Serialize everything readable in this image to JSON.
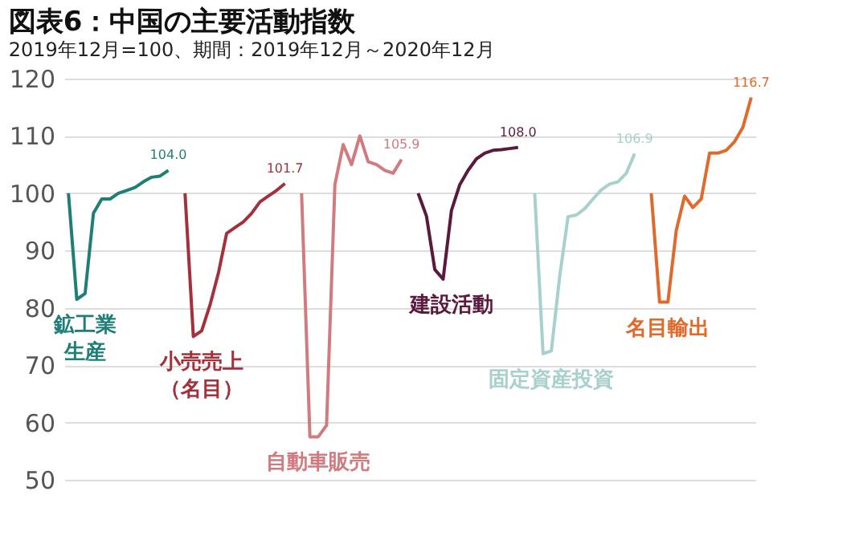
{
  "chart_data": {
    "type": "line",
    "title": "図表6：中国の主要活動指数",
    "subtitle": "2019年12月=100、期間：2019年12月～2020年12月",
    "categories": [
      null,
      null,
      null,
      null,
      null,
      null,
      null,
      null,
      null,
      null,
      null,
      null,
      null,
      null,
      null,
      null,
      null,
      null,
      null,
      null,
      null,
      null,
      null,
      null,
      null,
      null,
      null,
      null,
      null,
      null,
      null,
      null,
      null,
      null,
      null,
      null,
      null,
      null,
      null,
      null,
      null,
      null,
      null,
      null,
      null,
      null,
      null,
      null,
      null,
      null,
      null,
      null,
      null,
      null,
      null,
      null,
      null,
      null,
      null,
      null,
      null,
      null,
      null,
      null,
      null,
      null,
      null,
      null,
      null,
      null,
      null,
      null,
      null,
      null,
      null,
      null,
      null,
      null,
      null,
      null,
      null,
      null,
      null
    ],
    "ylim": [
      50,
      120
    ],
    "yticks": [
      50,
      60,
      70,
      80,
      90,
      100,
      110,
      120
    ],
    "grid": "y",
    "legend": false,
    "tick_labels": "y",
    "series": [
      {
        "name": "鉱工業生産",
        "color": "#1f7f78",
        "values": [
          100,
          81.5,
          82.5,
          96.5,
          99,
          99,
          100,
          100.5,
          101,
          102,
          102.8,
          103,
          104.0,
          null,
          null,
          null,
          null,
          null,
          null,
          null,
          null,
          null,
          null,
          null,
          null,
          null,
          null,
          null,
          null,
          null,
          null,
          null,
          null,
          null,
          null,
          null,
          null,
          null,
          null,
          null,
          null,
          null,
          null,
          null,
          null,
          null,
          null,
          null,
          null,
          null,
          null,
          null,
          null,
          null,
          null,
          null,
          null,
          null,
          null,
          null,
          null,
          null,
          null,
          null,
          null,
          null,
          null,
          null,
          null,
          null,
          null,
          null,
          null,
          null,
          null,
          null,
          null,
          null,
          null,
          null,
          null,
          null,
          null
        ],
        "value_labels": [
          null,
          null,
          null,
          null,
          null,
          null,
          null,
          null,
          null,
          null,
          null,
          null,
          "104.0",
          null,
          null,
          null,
          null,
          null,
          null,
          null,
          null,
          null,
          null,
          null,
          null,
          null,
          null,
          null,
          null,
          null,
          null,
          null,
          null,
          null,
          null,
          null,
          null,
          null,
          null,
          null,
          null,
          null,
          null,
          null,
          null,
          null,
          null,
          null,
          null,
          null,
          null,
          null,
          null,
          null,
          null,
          null,
          null,
          null,
          null,
          null,
          null,
          null,
          null,
          null,
          null,
          null,
          null,
          null,
          null,
          null,
          null,
          null,
          null,
          null,
          null,
          null,
          null,
          null,
          null,
          null,
          null,
          null,
          null
        ]
      },
      {
        "name": "小売売上（名目）",
        "color": "#a3303a",
        "values": [
          null,
          null,
          null,
          null,
          null,
          null,
          null,
          null,
          null,
          null,
          null,
          null,
          null,
          null,
          100,
          75,
          76,
          80.5,
          86,
          93,
          94,
          95,
          96.5,
          98.5,
          99.5,
          100.5,
          101.7,
          null,
          null,
          null,
          null,
          null,
          null,
          null,
          null,
          null,
          null,
          null,
          null,
          null,
          null,
          null,
          null,
          null,
          null,
          null,
          null,
          null,
          null,
          null,
          null,
          null,
          null,
          null,
          null,
          null,
          null,
          null,
          null,
          null,
          null,
          null,
          null,
          null,
          null,
          null,
          null,
          null,
          null,
          null,
          null,
          null,
          null,
          null,
          null,
          null,
          null,
          null,
          null,
          null,
          null,
          null,
          null
        ],
        "value_labels": [
          null,
          null,
          null,
          null,
          null,
          null,
          null,
          null,
          null,
          null,
          null,
          null,
          null,
          null,
          null,
          null,
          null,
          null,
          null,
          null,
          null,
          null,
          null,
          null,
          null,
          null,
          "101.7",
          null,
          null,
          null,
          null,
          null,
          null,
          null,
          null,
          null,
          null,
          null,
          null,
          null,
          null,
          null,
          null,
          null,
          null,
          null,
          null,
          null,
          null,
          null,
          null,
          null,
          null,
          null,
          null,
          null,
          null,
          null,
          null,
          null,
          null,
          null,
          null,
          null,
          null,
          null,
          null,
          null,
          null,
          null,
          null,
          null,
          null,
          null,
          null,
          null,
          null,
          null,
          null,
          null,
          null,
          null,
          null
        ]
      },
      {
        "name": "自動車販売",
        "color": "#d07b80",
        "values": [
          null,
          null,
          null,
          null,
          null,
          null,
          null,
          null,
          null,
          null,
          null,
          null,
          null,
          null,
          null,
          null,
          null,
          null,
          null,
          null,
          null,
          null,
          null,
          null,
          null,
          null,
          null,
          null,
          100,
          57.5,
          57.5,
          59.5,
          101.5,
          108.5,
          105,
          110,
          105.5,
          105,
          104,
          103.5,
          105.9,
          null,
          null,
          null,
          null,
          null,
          null,
          null,
          null,
          null,
          null,
          null,
          null,
          null,
          null,
          null,
          null,
          null,
          null,
          null,
          null,
          null,
          null,
          null,
          null,
          null,
          null,
          null,
          null,
          null,
          null,
          null,
          null,
          null,
          null,
          null,
          null,
          null,
          null,
          null,
          null,
          null,
          null
        ],
        "value_labels": [
          null,
          null,
          null,
          null,
          null,
          null,
          null,
          null,
          null,
          null,
          null,
          null,
          null,
          null,
          null,
          null,
          null,
          null,
          null,
          null,
          null,
          null,
          null,
          null,
          null,
          null,
          null,
          null,
          null,
          null,
          null,
          null,
          null,
          null,
          null,
          null,
          null,
          null,
          null,
          null,
          "105.9",
          null,
          null,
          null,
          null,
          null,
          null,
          null,
          null,
          null,
          null,
          null,
          null,
          null,
          null,
          null,
          null,
          null,
          null,
          null,
          null,
          null,
          null,
          null,
          null,
          null,
          null,
          null,
          null,
          null,
          null,
          null,
          null,
          null,
          null,
          null,
          null,
          null,
          null,
          null,
          null,
          null,
          null
        ]
      },
      {
        "name": "建設活動",
        "color": "#5a1a3e",
        "values": [
          null,
          null,
          null,
          null,
          null,
          null,
          null,
          null,
          null,
          null,
          null,
          null,
          null,
          null,
          null,
          null,
          null,
          null,
          null,
          null,
          null,
          null,
          null,
          null,
          null,
          null,
          null,
          null,
          null,
          null,
          null,
          null,
          null,
          null,
          null,
          null,
          null,
          null,
          null,
          null,
          null,
          null,
          100,
          96,
          86.7,
          85,
          97,
          101.5,
          104,
          106,
          107,
          107.5,
          107.6,
          107.8,
          108.0,
          null,
          null,
          null,
          null,
          null,
          null,
          null,
          null,
          null,
          null,
          null,
          null,
          null,
          null,
          null,
          null,
          null,
          null,
          null,
          null,
          null,
          null,
          null,
          null,
          null,
          null,
          null,
          null
        ],
        "value_labels": [
          null,
          null,
          null,
          null,
          null,
          null,
          null,
          null,
          null,
          null,
          null,
          null,
          null,
          null,
          null,
          null,
          null,
          null,
          null,
          null,
          null,
          null,
          null,
          null,
          null,
          null,
          null,
          null,
          null,
          null,
          null,
          null,
          null,
          null,
          null,
          null,
          null,
          null,
          null,
          null,
          null,
          null,
          null,
          null,
          null,
          null,
          null,
          null,
          null,
          null,
          null,
          null,
          null,
          null,
          "108.0",
          null,
          null,
          null,
          null,
          null,
          null,
          null,
          null,
          null,
          null,
          null,
          null,
          null,
          null,
          null,
          null,
          null,
          null,
          null,
          null,
          null,
          null,
          null,
          null,
          null,
          null,
          null,
          null
        ]
      },
      {
        "name": "固定資産投資",
        "color": "#a8d0cc",
        "values": [
          null,
          null,
          null,
          null,
          null,
          null,
          null,
          null,
          null,
          null,
          null,
          null,
          null,
          null,
          null,
          null,
          null,
          null,
          null,
          null,
          null,
          null,
          null,
          null,
          null,
          null,
          null,
          null,
          null,
          null,
          null,
          null,
          null,
          null,
          null,
          null,
          null,
          null,
          null,
          null,
          null,
          null,
          null,
          null,
          null,
          null,
          null,
          null,
          null,
          null,
          null,
          null,
          null,
          null,
          null,
          null,
          100,
          72,
          72.5,
          85.5,
          95.9,
          96.2,
          97.3,
          99,
          100.6,
          101.6,
          102,
          103.5,
          106.9,
          null,
          null,
          null,
          null,
          null,
          null,
          null,
          null,
          null,
          null,
          null,
          null,
          null,
          null
        ],
        "value_labels": [
          null,
          null,
          null,
          null,
          null,
          null,
          null,
          null,
          null,
          null,
          null,
          null,
          null,
          null,
          null,
          null,
          null,
          null,
          null,
          null,
          null,
          null,
          null,
          null,
          null,
          null,
          null,
          null,
          null,
          null,
          null,
          null,
          null,
          null,
          null,
          null,
          null,
          null,
          null,
          null,
          null,
          null,
          null,
          null,
          null,
          null,
          null,
          null,
          null,
          null,
          null,
          null,
          null,
          null,
          null,
          null,
          null,
          null,
          null,
          null,
          null,
          null,
          null,
          null,
          null,
          null,
          null,
          null,
          "106.9",
          null,
          null,
          null,
          null,
          null,
          null,
          null,
          null,
          null,
          null,
          null,
          null,
          null,
          null
        ]
      },
      {
        "name": "名目輸出",
        "color": "#e06a2c",
        "values": [
          null,
          null,
          null,
          null,
          null,
          null,
          null,
          null,
          null,
          null,
          null,
          null,
          null,
          null,
          null,
          null,
          null,
          null,
          null,
          null,
          null,
          null,
          null,
          null,
          null,
          null,
          null,
          null,
          null,
          null,
          null,
          null,
          null,
          null,
          null,
          null,
          null,
          null,
          null,
          null,
          null,
          null,
          null,
          null,
          null,
          null,
          null,
          null,
          null,
          null,
          null,
          null,
          null,
          null,
          null,
          null,
          null,
          null,
          null,
          null,
          null,
          null,
          null,
          null,
          null,
          null,
          null,
          null,
          null,
          null,
          100,
          81,
          81,
          93.5,
          99.5,
          97.5,
          99,
          107,
          107,
          107.5,
          109,
          111.5,
          116.7
        ],
        "value_labels": [
          null,
          null,
          null,
          null,
          null,
          null,
          null,
          null,
          null,
          null,
          null,
          null,
          null,
          null,
          null,
          null,
          null,
          null,
          null,
          null,
          null,
          null,
          null,
          null,
          null,
          null,
          null,
          null,
          null,
          null,
          null,
          null,
          null,
          null,
          null,
          null,
          null,
          null,
          null,
          null,
          null,
          null,
          null,
          null,
          null,
          null,
          null,
          null,
          null,
          null,
          null,
          null,
          null,
          null,
          null,
          null,
          null,
          null,
          null,
          null,
          null,
          null,
          null,
          null,
          null,
          null,
          null,
          null,
          null,
          null,
          null,
          null,
          null,
          null,
          null,
          null,
          null,
          null,
          null,
          null,
          null,
          null,
          "116.7"
        ]
      }
    ]
  }
}
